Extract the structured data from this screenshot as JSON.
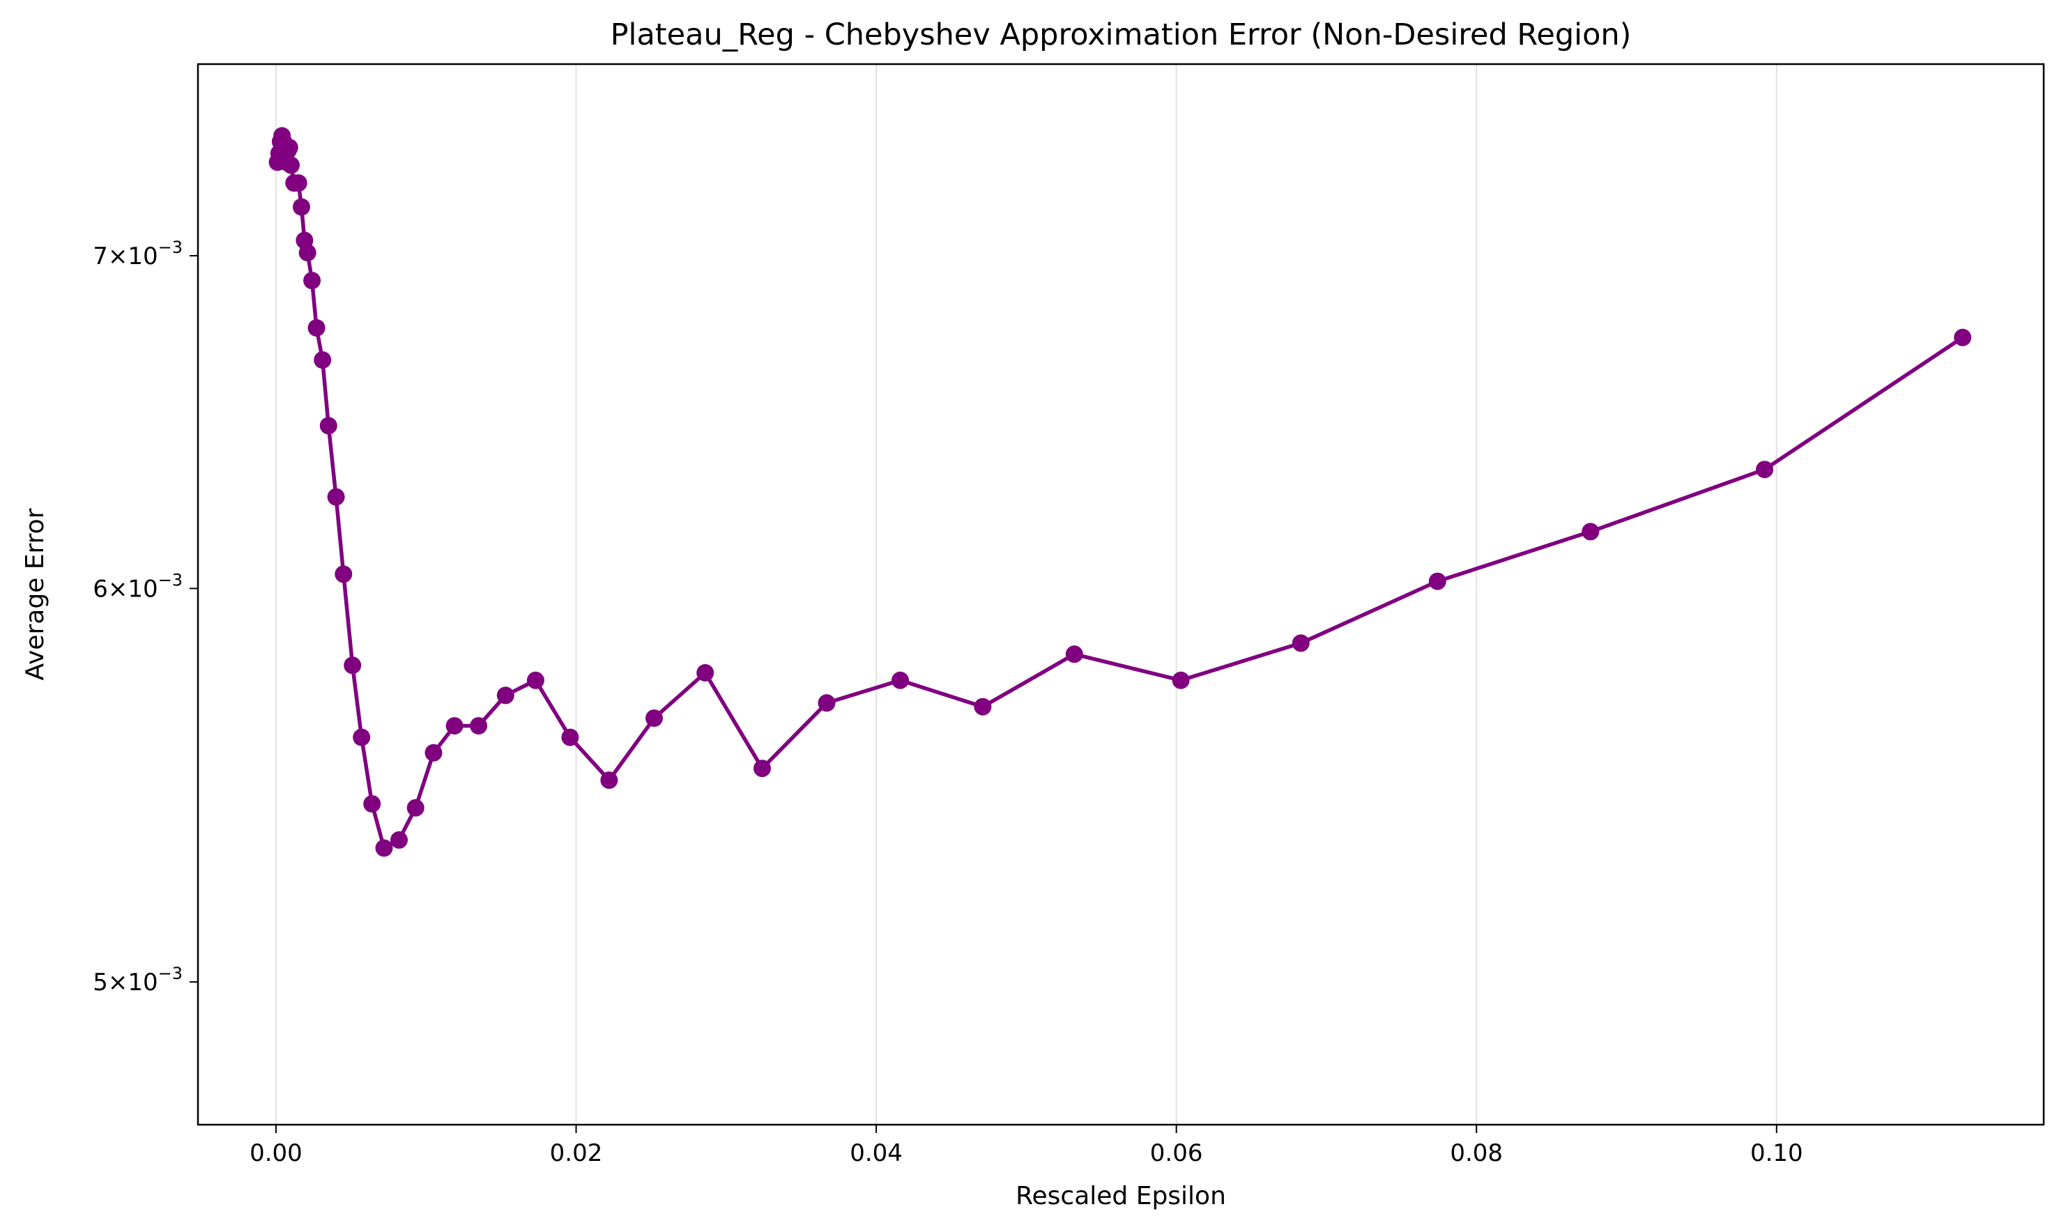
{
  "chart_data": {
    "type": "line",
    "title": "Plateau_Reg - Chebyshev Approximation Error (Non-Desired Region)",
    "xlabel": "Rescaled Epsilon",
    "ylabel": "Average Error",
    "xlim": [
      -0.0052,
      0.1178
    ],
    "ylim": [
      0.00468,
      0.00765
    ],
    "yscale": "log",
    "grid": "x-only",
    "x_ticks": [
      {
        "value": 0.0,
        "label": "0.00"
      },
      {
        "value": 0.02,
        "label": "0.02"
      },
      {
        "value": 0.04,
        "label": "0.04"
      },
      {
        "value": 0.06,
        "label": "0.06"
      },
      {
        "value": 0.08,
        "label": "0.08"
      },
      {
        "value": 0.1,
        "label": "0.10"
      }
    ],
    "y_ticks": [
      {
        "value": 0.005,
        "mantissa": "5",
        "times": "×",
        "base": "10",
        "exp": "−3"
      },
      {
        "value": 0.006,
        "mantissa": "6",
        "times": "×",
        "base": "10",
        "exp": "−3"
      },
      {
        "value": 0.007,
        "mantissa": "7",
        "times": "×",
        "base": "10",
        "exp": "−3"
      }
    ],
    "series": [
      {
        "color": "#800080",
        "marker": "circle",
        "x": [
          0.0001,
          0.0002,
          0.0003,
          0.0004,
          0.0005,
          0.0006,
          0.0007,
          0.0008,
          0.0009,
          0.001,
          0.0012,
          0.0015,
          0.0017,
          0.0019,
          0.0021,
          0.0024,
          0.0027,
          0.0031,
          0.0035,
          0.004,
          0.0045,
          0.0051,
          0.0057,
          0.0064,
          0.0072,
          0.0082,
          0.0093,
          0.0105,
          0.0119,
          0.0135,
          0.0153,
          0.0173,
          0.0196,
          0.0222,
          0.0252,
          0.0286,
          0.0324,
          0.0367,
          0.0416,
          0.0471,
          0.0532,
          0.0603,
          0.0683,
          0.0774,
          0.0876,
          0.0992,
          0.1124
        ],
        "y": [
          0.00731,
          0.00734,
          0.00738,
          0.0074,
          0.00738,
          0.00733,
          0.00731,
          0.00735,
          0.00736,
          0.0073,
          0.00724,
          0.00724,
          0.00716,
          0.00705,
          0.00701,
          0.00692,
          0.00677,
          0.00667,
          0.00647,
          0.00626,
          0.00604,
          0.00579,
          0.0056,
          0.00543,
          0.00532,
          0.00534,
          0.00542,
          0.00556,
          0.00563,
          0.00563,
          0.00571,
          0.00575,
          0.0056,
          0.00549,
          0.00565,
          0.00577,
          0.00552,
          0.00569,
          0.00575,
          0.00568,
          0.00582,
          0.00575,
          0.00585,
          0.00602,
          0.00616,
          0.00634,
          0.00674
        ]
      }
    ]
  }
}
